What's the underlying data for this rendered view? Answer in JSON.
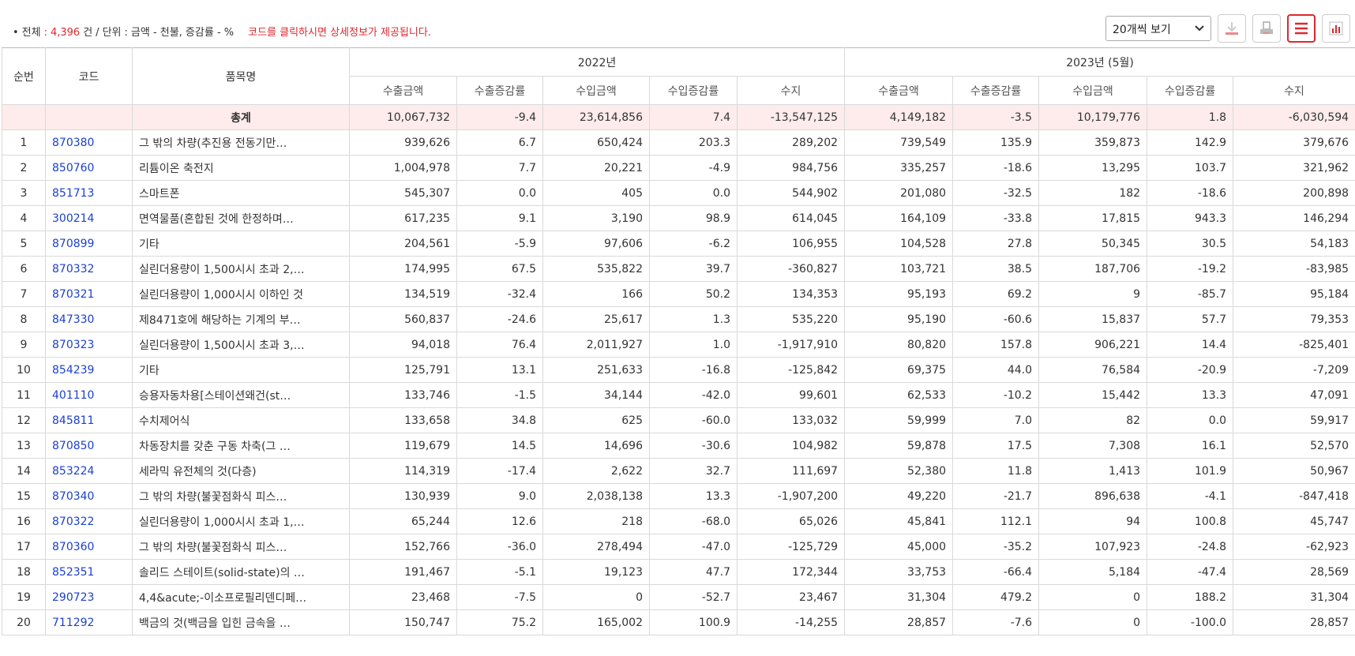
{
  "header": {
    "bullet": "•",
    "total_label": "전체",
    "colon": ":",
    "total_count": "4,396",
    "count_unit": "건",
    "slash": "/",
    "unit_label": "단위",
    "unit_text": "금액 - 천불, 증감률 - %",
    "notice": "코드를 클릭하시면 상세정보가 제공됩니다."
  },
  "toolbar": {
    "page_size": "20개씩 보기"
  },
  "table": {
    "fixed_columns": [
      "순번",
      "코드",
      "품목명"
    ],
    "groups": [
      {
        "label": "2022년",
        "columns": [
          "수출금액",
          "수출증감률",
          "수입금액",
          "수입증감률",
          "수지"
        ]
      },
      {
        "label": "2023년 (5월)",
        "columns": [
          "수출금액",
          "수출증감률",
          "수입금액",
          "수입증감률",
          "수지"
        ]
      }
    ],
    "total": {
      "label": "총계",
      "values": [
        "10,067,732",
        "-9.4",
        "23,614,856",
        "7.4",
        "-13,547,125",
        "4,149,182",
        "-3.5",
        "10,179,776",
        "1.8",
        "-6,030,594"
      ]
    },
    "rows": [
      [
        "1",
        "870380",
        "그 밖의 차량(추진용 전동기만…",
        "939,626",
        "6.7",
        "650,424",
        "203.3",
        "289,202",
        "739,549",
        "135.9",
        "359,873",
        "142.9",
        "379,676"
      ],
      [
        "2",
        "850760",
        "리튬이온 축전지",
        "1,004,978",
        "7.7",
        "20,221",
        "-4.9",
        "984,756",
        "335,257",
        "-18.6",
        "13,295",
        "103.7",
        "321,962"
      ],
      [
        "3",
        "851713",
        "스마트폰",
        "545,307",
        "0.0",
        "405",
        "0.0",
        "544,902",
        "201,080",
        "-32.5",
        "182",
        "-18.6",
        "200,898"
      ],
      [
        "4",
        "300214",
        "면역물품(혼합된 것에 한정하며…",
        "617,235",
        "9.1",
        "3,190",
        "98.9",
        "614,045",
        "164,109",
        "-33.8",
        "17,815",
        "943.3",
        "146,294"
      ],
      [
        "5",
        "870899",
        "기타",
        "204,561",
        "-5.9",
        "97,606",
        "-6.2",
        "106,955",
        "104,528",
        "27.8",
        "50,345",
        "30.5",
        "54,183"
      ],
      [
        "6",
        "870332",
        "실린더용량이 1,500시시 초과 2,…",
        "174,995",
        "67.5",
        "535,822",
        "39.7",
        "-360,827",
        "103,721",
        "38.5",
        "187,706",
        "-19.2",
        "-83,985"
      ],
      [
        "7",
        "870321",
        "실린더용량이 1,000시시 이하인 것",
        "134,519",
        "-32.4",
        "166",
        "50.2",
        "134,353",
        "95,193",
        "69.2",
        "9",
        "-85.7",
        "95,184"
      ],
      [
        "8",
        "847330",
        "제8471호에 해당하는 기계의 부…",
        "560,837",
        "-24.6",
        "25,617",
        "1.3",
        "535,220",
        "95,190",
        "-60.6",
        "15,837",
        "57.7",
        "79,353"
      ],
      [
        "9",
        "870323",
        "실린더용량이 1,500시시 초과 3,…",
        "94,018",
        "76.4",
        "2,011,927",
        "1.0",
        "-1,917,910",
        "80,820",
        "157.8",
        "906,221",
        "14.4",
        "-825,401"
      ],
      [
        "10",
        "854239",
        "기타",
        "125,791",
        "13.1",
        "251,633",
        "-16.8",
        "-125,842",
        "69,375",
        "44.0",
        "76,584",
        "-20.9",
        "-7,209"
      ],
      [
        "11",
        "401110",
        "승용자동차용[스테이션왜건(st…",
        "133,746",
        "-1.5",
        "34,144",
        "-42.0",
        "99,601",
        "62,533",
        "-10.2",
        "15,442",
        "13.3",
        "47,091"
      ],
      [
        "12",
        "845811",
        "수치제어식",
        "133,658",
        "34.8",
        "625",
        "-60.0",
        "133,032",
        "59,999",
        "7.0",
        "82",
        "0.0",
        "59,917"
      ],
      [
        "13",
        "870850",
        "차동장치를 갖춘 구동 차축(그 …",
        "119,679",
        "14.5",
        "14,696",
        "-30.6",
        "104,982",
        "59,878",
        "17.5",
        "7,308",
        "16.1",
        "52,570"
      ],
      [
        "14",
        "853224",
        "세라믹 유전체의 것(다층)",
        "114,319",
        "-17.4",
        "2,622",
        "32.7",
        "111,697",
        "52,380",
        "11.8",
        "1,413",
        "101.9",
        "50,967"
      ],
      [
        "15",
        "870340",
        "그 밖의 차량(불꽃점화식 피스…",
        "130,939",
        "9.0",
        "2,038,138",
        "13.3",
        "-1,907,200",
        "49,220",
        "-21.7",
        "896,638",
        "-4.1",
        "-847,418"
      ],
      [
        "16",
        "870322",
        "실린더용량이 1,000시시 초과 1,…",
        "65,244",
        "12.6",
        "218",
        "-68.0",
        "65,026",
        "45,841",
        "112.1",
        "94",
        "100.8",
        "45,747"
      ],
      [
        "17",
        "870360",
        "그 밖의 차량(불꽃점화식 피스…",
        "152,766",
        "-36.0",
        "278,494",
        "-47.0",
        "-125,729",
        "45,000",
        "-35.2",
        "107,923",
        "-24.8",
        "-62,923"
      ],
      [
        "18",
        "852351",
        "솔리드 스테이트(solid-state)의 …",
        "191,467",
        "-5.1",
        "19,123",
        "47.7",
        "172,344",
        "33,753",
        "-66.4",
        "5,184",
        "-47.4",
        "28,569"
      ],
      [
        "19",
        "290723",
        "4,4&acute;-이소프로필리덴디페…",
        "23,468",
        "-7.5",
        "0",
        "-52.7",
        "23,467",
        "31,304",
        "479.2",
        "0",
        "188.2",
        "31,304"
      ],
      [
        "20",
        "711292",
        "백금의 것(백금을 입힌 금속을 …",
        "150,747",
        "75.2",
        "165,002",
        "100.9",
        "-14,255",
        "28,857",
        "-7.6",
        "0",
        "-100.0",
        "28,857"
      ]
    ]
  }
}
